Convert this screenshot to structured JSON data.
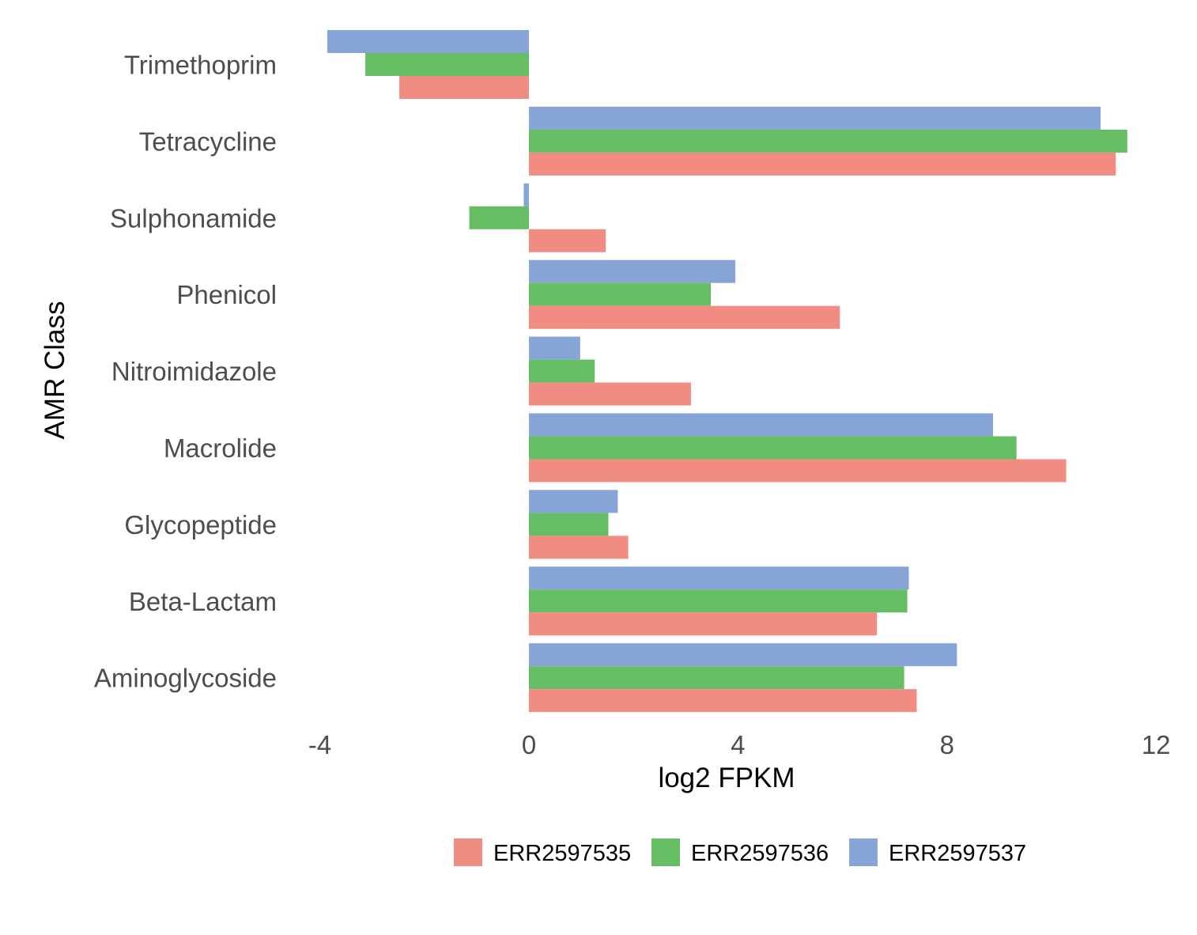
{
  "chart_data": {
    "type": "bar",
    "orientation": "horizontal",
    "title": "",
    "xlabel": "log2 FPKM",
    "ylabel": "AMR Class",
    "xlim": [
      -4.8,
      12
    ],
    "xticks": [
      -4,
      0,
      4,
      8,
      12
    ],
    "xtick_labels": [
      "-4",
      "0",
      "4",
      "8",
      "12"
    ],
    "grid": false,
    "legend_position": "bottom",
    "categories": [
      "Trimethoprim",
      "Tetracycline",
      "Sulphonamide",
      "Phenicol",
      "Nitroimidazole",
      "Macrolide",
      "Glycopeptide",
      "Beta-Lactam",
      "Aminoglycoside"
    ],
    "series": [
      {
        "name": "ERR2597535",
        "color": "#F08C82",
        "values": [
          -2.48,
          11.23,
          1.47,
          5.95,
          3.1,
          10.28,
          1.9,
          6.66,
          7.42
        ]
      },
      {
        "name": "ERR2597536",
        "color": "#66BE64",
        "values": [
          -3.13,
          11.45,
          -1.14,
          3.48,
          1.26,
          9.33,
          1.52,
          7.24,
          7.18
        ]
      },
      {
        "name": "ERR2597537",
        "color": "#86A4D6",
        "values": [
          -3.86,
          10.94,
          -0.1,
          3.95,
          0.98,
          8.88,
          1.7,
          7.27,
          8.19
        ]
      }
    ]
  }
}
